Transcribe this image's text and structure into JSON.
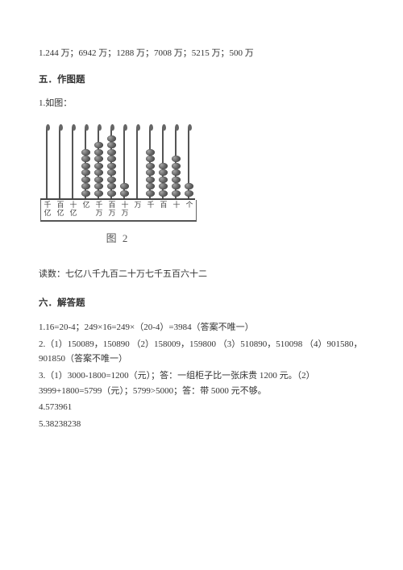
{
  "line1": "1.244 万；6942 万；1288 万；7008 万；5215 万；500 万",
  "section5": "五．作图题",
  "s5_q1": "1.如图：",
  "abacus": {
    "counts": [
      0,
      0,
      0,
      7,
      8,
      9,
      2,
      0,
      7,
      5,
      6,
      2
    ],
    "labels": [
      "千亿",
      "百亿",
      "十亿",
      "亿",
      "千万",
      "百万",
      "十万",
      "万",
      "千",
      "百",
      "十",
      "个"
    ],
    "caption": "图 2",
    "bead_fill": "#6b6b6b",
    "rod_color": "#555555",
    "border_color": "#555555",
    "label_fontsize": 9
  },
  "reading": "读数：七亿八千九百二十万七千五百六十二",
  "section6": "六．解答题",
  "answers": {
    "a1": "1.16=20-4；249×16=249×（20-4）=3984（答案不唯一）",
    "a2": "2.（1）150089，150890 （2）158009，159800 （3）510890，510098 （4）901580，901850（答案不唯一）",
    "a3": "3.（1）3000-1800=1200（元）；答：一组柜子比一张床贵 1200 元。（2）3999+1800=5799（元）；5799>5000；答：带 5000 元不够。",
    "a4": "4.573961",
    "a5": "5.38238238"
  },
  "style": {
    "page_bg": "#ffffff",
    "text_color": "#333333",
    "base_fontsize": 11
  }
}
